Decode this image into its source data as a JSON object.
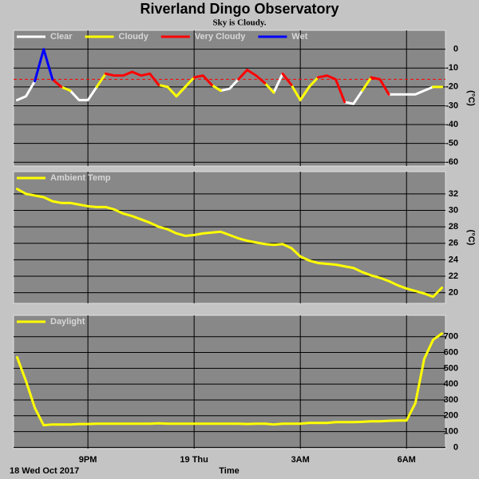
{
  "title": "Riverland Dingo Observatory",
  "subtitle": "Sky is Cloudy.",
  "chart_data": [
    {
      "type": "line",
      "ylabel": "(°C)",
      "x": [
        19,
        19.25,
        19.5,
        19.75,
        20,
        20.25,
        20.5,
        20.75,
        21,
        21.25,
        21.5,
        21.75,
        22,
        22.25,
        22.5,
        22.75,
        23,
        23.25,
        23.5,
        23.75,
        24,
        24.25,
        24.5,
        24.75,
        25,
        25.25,
        25.5,
        25.75,
        26,
        26.25,
        26.5,
        26.75,
        27,
        27.25,
        27.5,
        27.75,
        28,
        28.25,
        28.5,
        28.75,
        29,
        29.25,
        29.5,
        29.75,
        30,
        30.25,
        30.5,
        30.75,
        31
      ],
      "series": [
        {
          "name": "Clear",
          "color": "#ffffff",
          "values": [
            -27,
            -25,
            -17,
            null,
            null,
            null,
            -22,
            -27,
            -27,
            -20,
            null,
            null,
            null,
            null,
            null,
            null,
            null,
            null,
            -25,
            -20,
            null,
            null,
            null,
            -22,
            -21,
            -16,
            null,
            null,
            null,
            -23,
            -13,
            null,
            -27,
            -20,
            null,
            null,
            null,
            -28,
            -29,
            -22,
            null,
            null,
            -24,
            -24,
            -24,
            -24,
            -22,
            -20,
            null
          ]
        },
        {
          "name": "Cloudy",
          "color": "#ffff00",
          "values": [
            null,
            null,
            null,
            null,
            null,
            -20,
            -22,
            null,
            null,
            -20,
            -13,
            null,
            null,
            null,
            null,
            null,
            -19,
            -20,
            -25,
            -20,
            -15,
            null,
            -19,
            -22,
            null,
            null,
            null,
            null,
            -18,
            -23,
            null,
            -19,
            -27,
            -20,
            -15,
            null,
            null,
            null,
            null,
            -22,
            -15,
            null,
            null,
            null,
            null,
            null,
            null,
            -20,
            -20
          ]
        },
        {
          "name": "Very Cloudy",
          "color": "#ff0000",
          "values": [
            null,
            null,
            -17,
            null,
            -16,
            -20,
            null,
            null,
            null,
            null,
            -13,
            -14,
            -14,
            -12,
            -14,
            -13,
            -19,
            null,
            null,
            null,
            -15,
            -14,
            -19,
            null,
            null,
            -16,
            -11,
            -14,
            -18,
            null,
            -13,
            -19,
            null,
            null,
            -15,
            -14,
            -16,
            -28,
            null,
            null,
            -15,
            -16,
            -24,
            null,
            null,
            null,
            null,
            null,
            null
          ]
        },
        {
          "name": "Wet",
          "color": "#0000ff",
          "values": [
            null,
            null,
            -17,
            0,
            -16,
            null,
            null,
            null,
            null,
            null,
            null,
            null,
            null,
            null,
            null,
            null,
            null,
            null,
            null,
            null,
            null,
            null,
            null,
            null,
            null,
            null,
            null,
            null,
            null,
            null,
            null,
            null,
            null,
            null,
            null,
            null,
            null,
            null,
            null,
            null,
            null,
            null,
            null,
            null,
            null,
            null,
            null,
            null,
            null
          ]
        }
      ],
      "hline": -16,
      "hline_color": "#ff0000",
      "xlim": [
        18.9,
        31.1
      ],
      "ylim": [
        -62,
        10
      ],
      "yticks": [
        0,
        -10,
        -20,
        -30,
        -40,
        -50,
        -60
      ],
      "grid": true
    },
    {
      "type": "line",
      "ylabel": "(°C)",
      "x": [
        19,
        19.25,
        19.5,
        19.75,
        20,
        20.25,
        20.5,
        20.75,
        21,
        21.25,
        21.5,
        21.75,
        22,
        22.25,
        22.5,
        22.75,
        23,
        23.25,
        23.5,
        23.75,
        24,
        24.25,
        24.5,
        24.75,
        25,
        25.25,
        25.5,
        25.75,
        26,
        26.25,
        26.5,
        26.75,
        27,
        27.25,
        27.5,
        27.75,
        28,
        28.25,
        28.5,
        28.75,
        29,
        29.25,
        29.5,
        29.75,
        30,
        30.25,
        30.5,
        30.75,
        31
      ],
      "series": [
        {
          "name": "Ambient Temp",
          "color": "#ffff00",
          "values": [
            32.6,
            32.0,
            31.8,
            31.6,
            31.1,
            30.9,
            30.9,
            30.7,
            30.5,
            30.4,
            30.4,
            30.1,
            29.6,
            29.3,
            28.9,
            28.5,
            28.0,
            27.7,
            27.2,
            26.9,
            27.0,
            27.2,
            27.3,
            27.4,
            27.0,
            26.6,
            26.3,
            26.1,
            25.9,
            25.8,
            25.9,
            25.4,
            24.4,
            23.9,
            23.6,
            23.5,
            23.4,
            23.2,
            23.0,
            22.5,
            22.1,
            21.8,
            21.4,
            20.9,
            20.5,
            20.2,
            19.9,
            19.5,
            20.6
          ]
        }
      ],
      "xlim": [
        18.9,
        31.1
      ],
      "ylim": [
        18.7,
        34.7
      ],
      "yticks": [
        20,
        22,
        24,
        26,
        28,
        30,
        32
      ],
      "grid": true
    },
    {
      "type": "line",
      "xlabel": "Time",
      "date_label": "18 Wed Oct 2017",
      "x": [
        19,
        19.25,
        19.5,
        19.75,
        20,
        20.25,
        20.5,
        20.75,
        21,
        21.25,
        21.5,
        21.75,
        22,
        22.25,
        22.5,
        22.75,
        23,
        23.25,
        23.5,
        23.75,
        24,
        24.25,
        24.5,
        24.75,
        25,
        25.25,
        25.5,
        25.75,
        26,
        26.25,
        26.5,
        26.75,
        27,
        27.25,
        27.5,
        27.75,
        28,
        28.25,
        28.5,
        28.75,
        29,
        29.25,
        29.5,
        29.75,
        30,
        30.25,
        30.5,
        30.75,
        31
      ],
      "series": [
        {
          "name": "Daylight",
          "color": "#ffff00",
          "values": [
            570,
            420,
            250,
            140,
            145,
            145,
            145,
            148,
            148,
            150,
            150,
            150,
            150,
            150,
            150,
            150,
            152,
            150,
            150,
            150,
            150,
            150,
            150,
            150,
            150,
            150,
            148,
            150,
            150,
            145,
            150,
            150,
            150,
            155,
            155,
            155,
            160,
            160,
            160,
            162,
            165,
            165,
            168,
            170,
            170,
            280,
            560,
            680,
            720
          ]
        }
      ],
      "xlim": [
        18.9,
        31.1
      ],
      "ylim": [
        -8,
        835
      ],
      "yticks": [
        0,
        100,
        200,
        300,
        400,
        500,
        600,
        700
      ],
      "xticks": [
        {
          "value": 21,
          "label": "9PM"
        },
        {
          "value": 24,
          "label": "19 Thu"
        },
        {
          "value": 27,
          "label": "3AM"
        },
        {
          "value": 30,
          "label": "6AM"
        }
      ],
      "grid": true
    }
  ]
}
